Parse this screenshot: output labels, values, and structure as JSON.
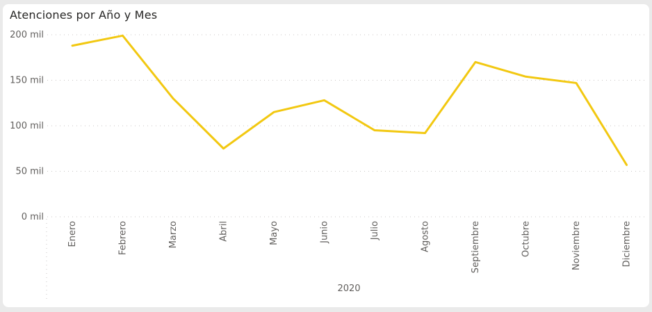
{
  "chart_data": {
    "type": "line",
    "title": "Atenciones por Año y Mes",
    "categories": [
      "Enero",
      "Febrero",
      "Marzo",
      "Abril",
      "Mayo",
      "Junio",
      "Julio",
      "Agosto",
      "Septiembre",
      "Octubre",
      "Noviembre",
      "Diciembre"
    ],
    "series": [
      {
        "values": [
          188000,
          199000,
          130000,
          75000,
          115000,
          128000,
          95000,
          92000,
          170000,
          154000,
          147000,
          57000
        ]
      }
    ],
    "y_ticks": [
      "0 mil",
      "50 mil",
      "100 mil",
      "150 mil",
      "200 mil"
    ],
    "ylim": [
      0,
      200000
    ],
    "x_group_label": "2020",
    "grid": true,
    "line_color": "#f2c811"
  }
}
